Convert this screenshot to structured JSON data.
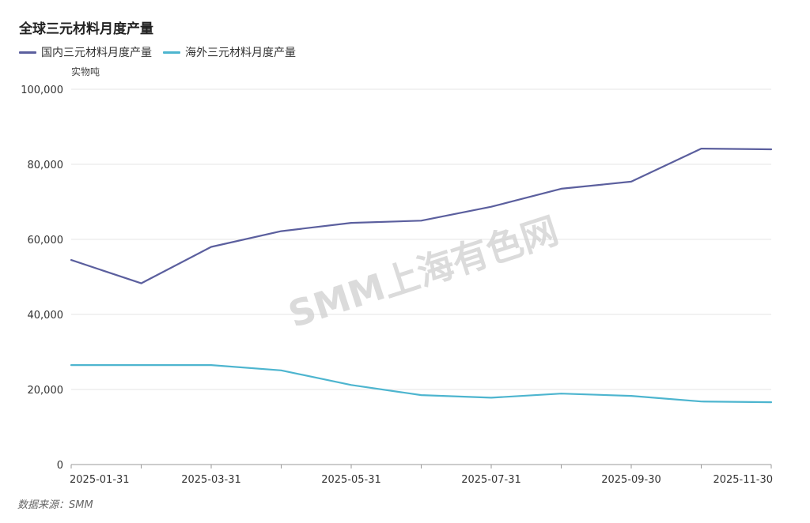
{
  "chart_data": {
    "type": "line",
    "title": "全球三元材料月度产量",
    "ylabel": "实物吨",
    "xlabel": "",
    "ylim": [
      0,
      100000
    ],
    "yticks": [
      0,
      20000,
      40000,
      60000,
      80000,
      100000
    ],
    "ytick_labels": [
      "0",
      "20,000",
      "40,000",
      "60,000",
      "80,000",
      "100,000"
    ],
    "x": [
      "2025-01-31",
      "2025-02-28",
      "2025-03-31",
      "2025-04-30",
      "2025-05-31",
      "2025-06-30",
      "2025-07-31",
      "2025-08-31",
      "2025-09-30",
      "2025-10-31",
      "2025-11-30"
    ],
    "xtick_labels": [
      "2025-01-31",
      "2025-03-31",
      "2025-05-31",
      "2025-07-31",
      "2025-09-30",
      "2025-11-30"
    ],
    "series": [
      {
        "name": "国内三元材料月度产量",
        "color": "#5b5f9e",
        "values": [
          54500,
          48300,
          58000,
          62200,
          64400,
          65000,
          68700,
          73500,
          75400,
          84200,
          84000
        ]
      },
      {
        "name": "海外三元材料月度产量",
        "color": "#4db5cf",
        "values": [
          26500,
          26500,
          26500,
          25100,
          21200,
          18500,
          17800,
          18900,
          18300,
          16800,
          16600
        ]
      }
    ],
    "legend_position": "top-left",
    "grid": true
  },
  "watermark": "SMM上海有色网",
  "source": "数据来源：SMM"
}
